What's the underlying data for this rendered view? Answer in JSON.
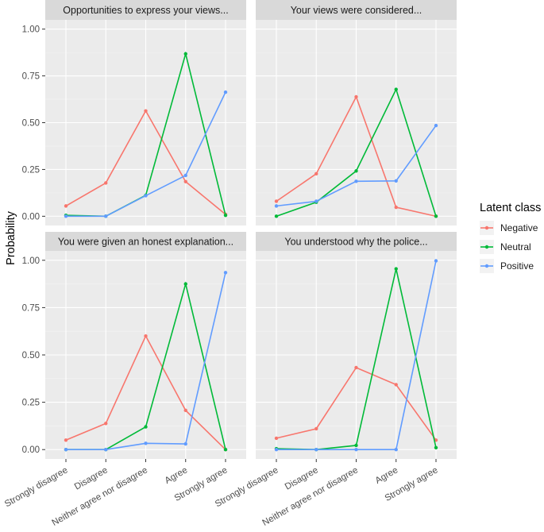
{
  "chart_data": {
    "type": "line",
    "ylabel": "Probability",
    "xlabel": "",
    "ylim": [
      0,
      1
    ],
    "y_ticks": [
      "0.00",
      "0.25",
      "0.50",
      "0.75",
      "1.00"
    ],
    "y_tick_values": [
      0,
      0.25,
      0.5,
      0.75,
      1.0
    ],
    "categories": [
      "Strongly disagree",
      "Disagree",
      "Neither agree nor disagree",
      "Agree",
      "Strongly agree"
    ],
    "legend": {
      "title": "Latent class",
      "entries": [
        {
          "name": "Negative",
          "color": "#F8766D"
        },
        {
          "name": "Neutral",
          "color": "#00BA38"
        },
        {
          "name": "Positive",
          "color": "#619CFF"
        }
      ]
    },
    "panels": [
      {
        "title": "Opportunities to express your views...",
        "series": [
          {
            "name": "Negative",
            "values": [
              0.055,
              0.178,
              0.563,
              0.185,
              0.01
            ]
          },
          {
            "name": "Neutral",
            "values": [
              0.005,
              0.0,
              0.112,
              0.868,
              0.005
            ]
          },
          {
            "name": "Positive",
            "values": [
              0.0,
              0.0,
              0.11,
              0.218,
              0.663
            ]
          }
        ]
      },
      {
        "title": "Your views were considered...",
        "series": [
          {
            "name": "Negative",
            "values": [
              0.08,
              0.227,
              0.638,
              0.048,
              0.0
            ]
          },
          {
            "name": "Neutral",
            "values": [
              0.0,
              0.075,
              0.242,
              0.678,
              0.0
            ]
          },
          {
            "name": "Positive",
            "values": [
              0.055,
              0.08,
              0.187,
              0.189,
              0.485
            ]
          }
        ]
      },
      {
        "title": "You were given an honest explanation...",
        "series": [
          {
            "name": "Negative",
            "values": [
              0.05,
              0.138,
              0.6,
              0.207,
              0.0
            ]
          },
          {
            "name": "Neutral",
            "values": [
              0.0,
              0.0,
              0.12,
              0.875,
              0.0
            ]
          },
          {
            "name": "Positive",
            "values": [
              0.0,
              0.0,
              0.033,
              0.03,
              0.935
            ]
          }
        ]
      },
      {
        "title": "You understood why the police...",
        "series": [
          {
            "name": "Negative",
            "values": [
              0.06,
              0.11,
              0.433,
              0.343,
              0.05
            ]
          },
          {
            "name": "Neutral",
            "values": [
              0.005,
              0.0,
              0.022,
              0.955,
              0.01
            ]
          },
          {
            "name": "Positive",
            "values": [
              0.0,
              0.0,
              0.0,
              0.0,
              0.997
            ]
          }
        ]
      }
    ]
  }
}
